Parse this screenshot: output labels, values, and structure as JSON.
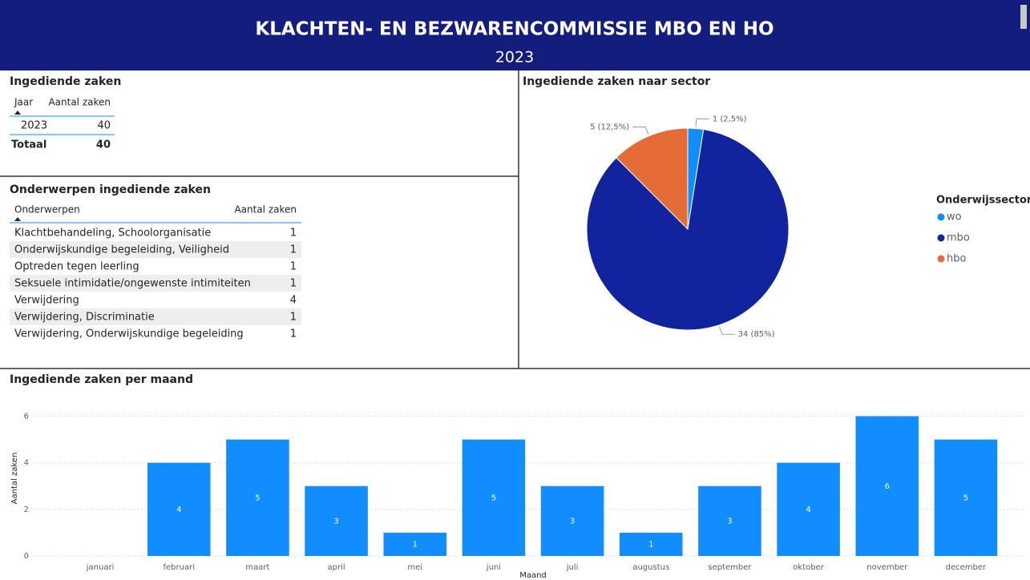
{
  "header": {
    "title": "KLACHTEN- EN BEZWARENCOMMISSIE MBO EN HO",
    "subtitle": "2023"
  },
  "table_years": {
    "title": "Ingediende zaken",
    "columns": [
      "Jaar",
      "Aantal zaken"
    ],
    "rows": [
      [
        "2023",
        40
      ]
    ],
    "total": [
      "Totaal",
      40
    ]
  },
  "table_topics": {
    "title": "Onderwerpen ingediende zaken",
    "columns": [
      "Onderwerpen",
      "Aantal zaken"
    ],
    "rows": [
      [
        "Klachtbehandeling, Schoolorganisatie",
        1
      ],
      [
        "Onderwijskundige begeleiding, Veiligheid",
        1
      ],
      [
        "Optreden tegen leerling",
        1
      ],
      [
        "Seksuele intimidatie/ongewenste intimiteiten",
        1
      ],
      [
        "Verwijdering",
        4
      ],
      [
        "Verwijdering, Discriminatie",
        1
      ],
      [
        "Verwijdering, Onderwijskundige begeleiding",
        1
      ]
    ]
  },
  "chart_data": [
    {
      "type": "pie",
      "title": "Ingediende zaken naar sector",
      "legend_title": "Onderwijssector",
      "categories": [
        "wo",
        "mbo",
        "hbo"
      ],
      "values": [
        1,
        34,
        5
      ],
      "value_labels": [
        "1 (2,5%)",
        "34 (85%)",
        "5 (12,5%)"
      ],
      "colors": [
        "#118dff",
        "#12239e",
        "#e66c37"
      ]
    },
    {
      "type": "bar",
      "title": "Ingediende zaken per maand",
      "x_label": "Maand",
      "y_label": "Aantal zaken",
      "categories": [
        "januari",
        "februari",
        "maart",
        "april",
        "mei",
        "juni",
        "juli",
        "augustus",
        "september",
        "oktober",
        "november",
        "december"
      ],
      "values": [
        null,
        4,
        5,
        3,
        1,
        5,
        3,
        1,
        3,
        4,
        6,
        5
      ],
      "color": "#118dff",
      "ylim": [
        0,
        6.5
      ],
      "yticks": [
        0,
        2,
        4,
        6
      ],
      "grid": true
    }
  ]
}
